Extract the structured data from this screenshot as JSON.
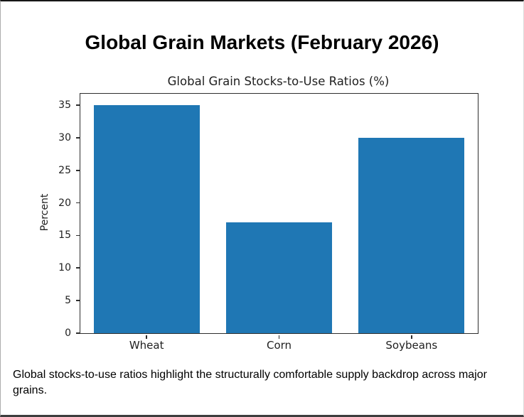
{
  "page": {
    "title": "Global Grain Markets (February 2026)",
    "caption": "Global stocks-to-use ratios highlight the structurally comfortable supply backdrop across major grains."
  },
  "chart_data": {
    "type": "bar",
    "title": "Global Grain Stocks-to-Use Ratios (%)",
    "categories": [
      "Wheat",
      "Corn",
      "Soybeans"
    ],
    "values": [
      35,
      17,
      30
    ],
    "xlabel": "",
    "ylabel": "Percent",
    "ylim": [
      0,
      36.75
    ],
    "yticks": [
      0,
      5,
      10,
      15,
      20,
      25,
      30,
      35
    ],
    "bar_color": "#1f77b4",
    "bar_width_fraction": 0.8,
    "grid": false,
    "legend": false
  }
}
